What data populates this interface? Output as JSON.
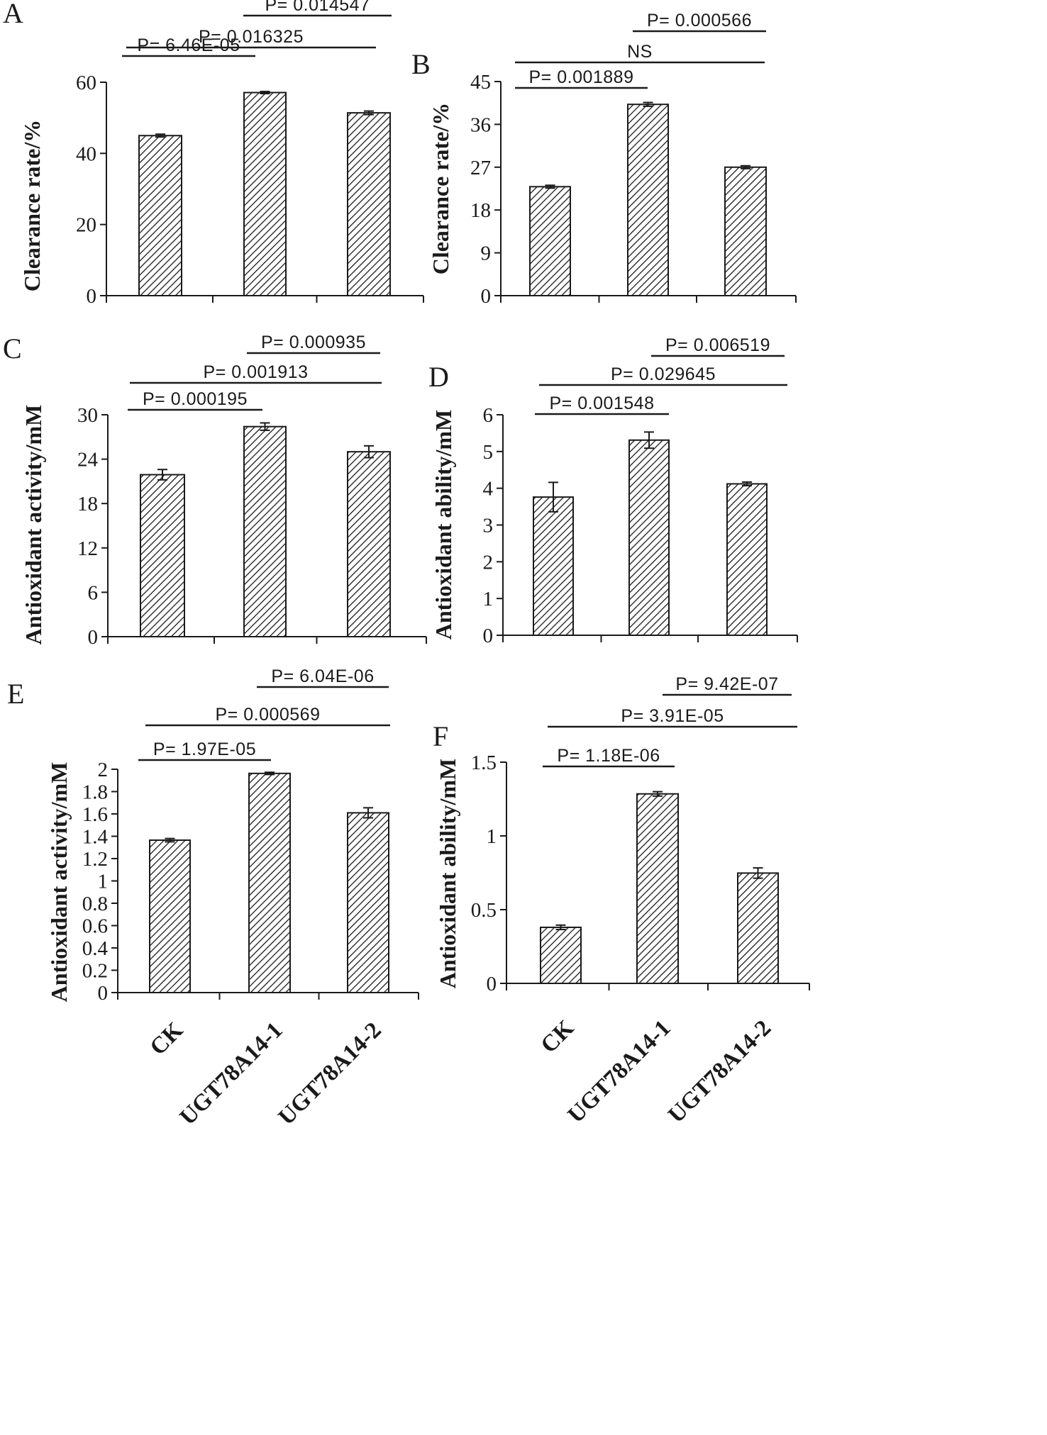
{
  "figure": {
    "description_categories": [
      "CK",
      "UGT78A14-1",
      "UGT78A14-2"
    ]
  },
  "colors": {
    "ink": "#1a1a1a",
    "bar_fill": "#ffffff"
  },
  "chart_data": [
    {
      "panel": "A",
      "type": "bar",
      "categories": [
        "CK",
        "UGT78A14-1",
        "UGT78A14-2"
      ],
      "values": [
        45.0,
        57.1,
        51.4
      ],
      "errors": [
        0.4,
        0.3,
        0.5
      ],
      "ylabel": "Clearance rate/%",
      "xlabel": "",
      "ylim": [
        0,
        60
      ],
      "yticks": [
        "0",
        "20",
        "40",
        "60"
      ],
      "show_category_labels": false,
      "comparisons": [
        {
          "pair": [
            0,
            1
          ],
          "label": "P= 6.46E-05"
        },
        {
          "pair": [
            0,
            2
          ],
          "label": "P= 0.016325"
        },
        {
          "pair": [
            1,
            2
          ],
          "label": "P= 0.014547"
        }
      ]
    },
    {
      "panel": "B",
      "type": "bar",
      "categories": [
        "CK",
        "UGT78A14-1",
        "UGT78A14-2"
      ],
      "values": [
        22.9,
        40.2,
        27.0
      ],
      "errors": [
        0.3,
        0.4,
        0.3
      ],
      "ylabel": "Clearance rate/%",
      "xlabel": "",
      "ylim": [
        0,
        45
      ],
      "yticks": [
        "0",
        "9",
        "18",
        "27",
        "36",
        "45"
      ],
      "show_category_labels": false,
      "comparisons": [
        {
          "pair": [
            0,
            1
          ],
          "label": "P= 0.001889"
        },
        {
          "pair": [
            0,
            2
          ],
          "label": "NS"
        },
        {
          "pair": [
            1,
            2
          ],
          "label": "P= 0.000566"
        }
      ]
    },
    {
      "panel": "C",
      "type": "bar",
      "categories": [
        "CK",
        "UGT78A14-1",
        "UGT78A14-2"
      ],
      "values": [
        21.9,
        28.4,
        25.0
      ],
      "errors": [
        0.7,
        0.5,
        0.8
      ],
      "ylabel": "Antioxidant activity/mM",
      "xlabel": "",
      "ylim": [
        0,
        30
      ],
      "yticks": [
        "0",
        "6",
        "12",
        "18",
        "24",
        "30"
      ],
      "show_category_labels": false,
      "comparisons": [
        {
          "pair": [
            0,
            1
          ],
          "label": "P= 0.000195"
        },
        {
          "pair": [
            0,
            2
          ],
          "label": "P= 0.001913"
        },
        {
          "pair": [
            1,
            2
          ],
          "label": "P= 0.000935"
        }
      ]
    },
    {
      "panel": "D",
      "type": "bar",
      "categories": [
        "CK",
        "UGT78A14-1",
        "UGT78A14-2"
      ],
      "values": [
        3.76,
        5.31,
        4.12
      ],
      "errors": [
        0.4,
        0.22,
        0.05
      ],
      "ylabel": "Antioxidant ability/mM",
      "xlabel": "",
      "ylim": [
        0,
        6
      ],
      "yticks": [
        "0",
        "1",
        "2",
        "3",
        "4",
        "5",
        "6"
      ],
      "show_category_labels": false,
      "comparisons": [
        {
          "pair": [
            0,
            1
          ],
          "label": "P= 0.001548"
        },
        {
          "pair": [
            0,
            2
          ],
          "label": "P= 0.029645"
        },
        {
          "pair": [
            1,
            2
          ],
          "label": "P= 0.006519"
        }
      ]
    },
    {
      "panel": "E",
      "type": "bar",
      "categories": [
        "CK",
        "UGT78A14-1",
        "UGT78A14-2"
      ],
      "values": [
        1.365,
        1.963,
        1.61
      ],
      "errors": [
        0.015,
        0.01,
        0.045
      ],
      "ylabel": "Antioxidant activity/mM",
      "xlabel": "",
      "ylim": [
        0,
        2
      ],
      "yticks": [
        "0",
        "0.2",
        "0.4",
        "0.6",
        "0.8",
        "1",
        "1.2",
        "1.4",
        "1.6",
        "1.8",
        "2"
      ],
      "show_category_labels": true,
      "comparisons": [
        {
          "pair": [
            0,
            1
          ],
          "label": "P= 1.97E-05"
        },
        {
          "pair": [
            0,
            2
          ],
          "label": "P= 0.000569"
        },
        {
          "pair": [
            1,
            2
          ],
          "label": "P= 6.04E-06"
        }
      ]
    },
    {
      "panel": "F",
      "type": "bar",
      "categories": [
        "CK",
        "UGT78A14-1",
        "UGT78A14-2"
      ],
      "values": [
        0.38,
        1.285,
        0.748
      ],
      "errors": [
        0.015,
        0.015,
        0.035
      ],
      "ylabel": "Antioxidant ability/mM",
      "xlabel": "",
      "ylim": [
        0,
        1.5
      ],
      "yticks": [
        "0",
        "0.5",
        "1",
        "1.5"
      ],
      "show_category_labels": true,
      "comparisons": [
        {
          "pair": [
            0,
            1
          ],
          "label": "P= 1.18E-06"
        },
        {
          "pair": [
            0,
            2
          ],
          "label": "P= 3.91E-05"
        },
        {
          "pair": [
            1,
            2
          ],
          "label": "P= 9.42E-07"
        }
      ]
    }
  ]
}
